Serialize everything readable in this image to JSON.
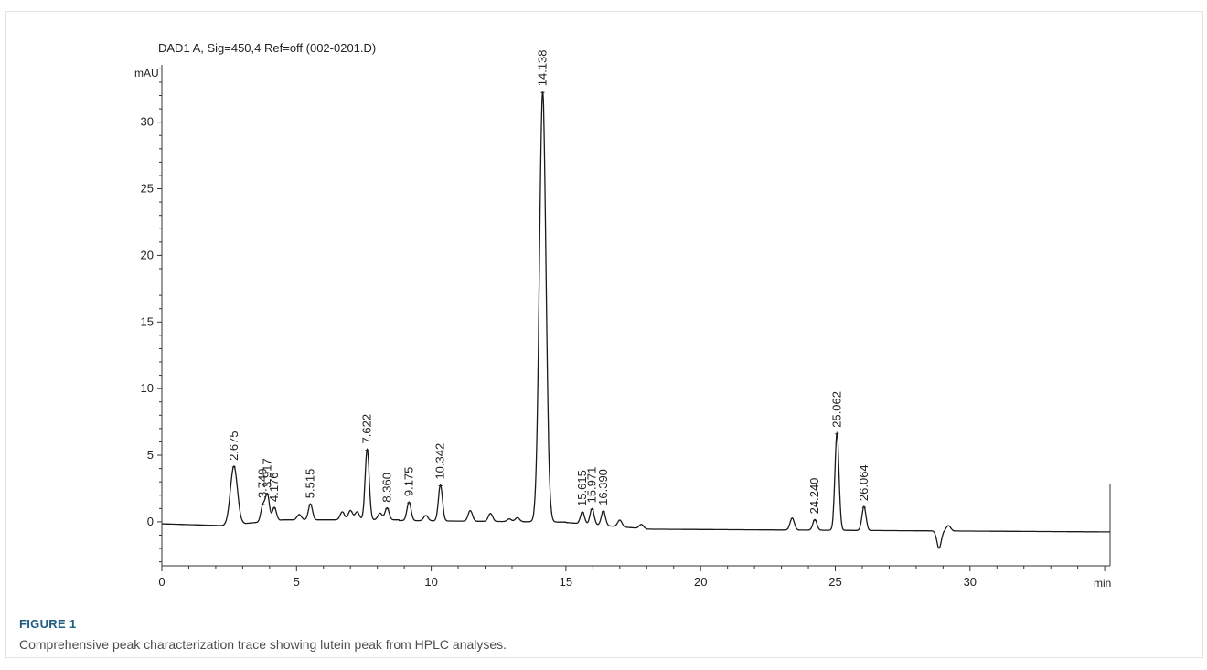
{
  "figure": {
    "label": "FIGURE 1",
    "caption": "Comprehensive peak characterization trace showing lutein peak from HPLC analyses."
  },
  "chart_data": {
    "type": "line",
    "title": "DAD1 A, Sig=450,4 Ref=off (002-0201.D)",
    "xlabel": "min",
    "ylabel": "mAU",
    "xlim": [
      0,
      35.2
    ],
    "ylim": [
      -3.3,
      34.3
    ],
    "xticks": [
      0,
      5,
      10,
      15,
      20,
      25,
      30
    ],
    "xtick_labels": [
      "0",
      "5",
      "10",
      "15",
      "20",
      "25",
      "30"
    ],
    "yticks": [
      0,
      5,
      10,
      15,
      20,
      25,
      30
    ],
    "ytick_labels": [
      "0",
      "5",
      "10",
      "15",
      "20",
      "25",
      "30"
    ],
    "grid": false,
    "line_color": "#1a1a1a",
    "peaks": [
      {
        "rt": 2.675,
        "label": "2.675",
        "height": 4.4
      },
      {
        "rt": 3.749,
        "label": "3.749",
        "height": 1.2
      },
      {
        "rt": 3.917,
        "label": "3.917",
        "height": 2.0
      },
      {
        "rt": 4.176,
        "label": "4.176",
        "height": 1.0
      },
      {
        "rt": 5.515,
        "label": "5.515",
        "height": 1.2
      },
      {
        "rt": 7.622,
        "label": "7.622",
        "height": 5.3
      },
      {
        "rt": 8.36,
        "label": "8.360",
        "height": 0.9
      },
      {
        "rt": 9.175,
        "label": "9.175",
        "height": 1.4
      },
      {
        "rt": 10.342,
        "label": "10.342",
        "height": 2.7
      },
      {
        "rt": 14.138,
        "label": "14.138",
        "height": 32.3
      },
      {
        "rt": 15.615,
        "label": "15.615",
        "height": 0.9
      },
      {
        "rt": 15.971,
        "label": "15.971",
        "height": 1.2
      },
      {
        "rt": 16.39,
        "label": "16.390",
        "height": 1.1
      },
      {
        "rt": 24.24,
        "label": "24.240",
        "height": 0.8
      },
      {
        "rt": 25.062,
        "label": "25.062",
        "height": 7.3
      },
      {
        "rt": 26.064,
        "label": "26.064",
        "height": 1.8
      }
    ],
    "minor_peaks": [
      {
        "rt": 5.1,
        "height": 0.4
      },
      {
        "rt": 6.7,
        "height": 0.6
      },
      {
        "rt": 7.0,
        "height": 0.7
      },
      {
        "rt": 7.25,
        "height": 0.6
      },
      {
        "rt": 8.1,
        "height": 0.5
      },
      {
        "rt": 9.8,
        "height": 0.4
      },
      {
        "rt": 11.45,
        "height": 0.8
      },
      {
        "rt": 12.2,
        "height": 0.6
      },
      {
        "rt": 12.9,
        "height": 0.2
      },
      {
        "rt": 13.2,
        "height": 0.3
      },
      {
        "rt": 17.0,
        "height": 0.5
      },
      {
        "rt": 17.8,
        "height": 0.3
      },
      {
        "rt": 23.4,
        "height": 0.9
      }
    ],
    "dips": [
      {
        "rt": 28.85,
        "depth": 1.3
      },
      {
        "rt": 29.2,
        "depth": -0.4
      }
    ]
  }
}
